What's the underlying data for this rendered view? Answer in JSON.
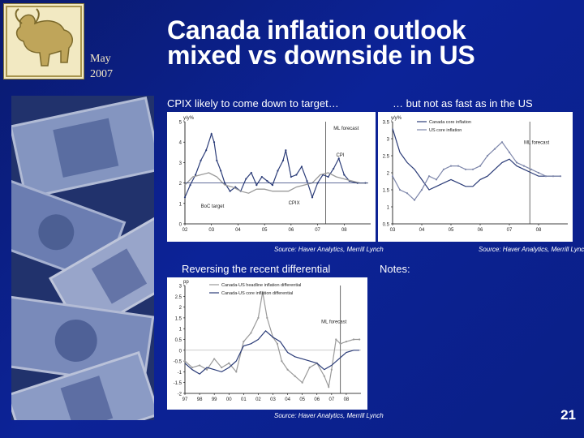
{
  "header": {
    "date_month": "May",
    "date_year": "2007",
    "title_line1": "Canada inflation outlook",
    "title_line2": "mixed vs downside in US"
  },
  "panels": {
    "top_left_heading": "CPIX likely to come down to target…",
    "top_right_heading": "… but not as fast as in the US",
    "bottom_left_heading": "Reversing the recent differential",
    "notes_heading": "Notes:"
  },
  "sources": {
    "top_left": "Source: Haver Analytics, Merrill Lynch",
    "top_right": "Source: Haver Analytics, Merrill Lync",
    "bottom_left": "Source: Haver Analytics, Merrill Lynch"
  },
  "page_number": "21",
  "colors": {
    "background": "#0c2398",
    "accent": "#e6c84a",
    "series_dark": "#2b3c78",
    "series_light": "#7d86aa",
    "series_gray": "#9a9a9a"
  },
  "chart_data": [
    {
      "type": "line",
      "title": "",
      "ylabel": "y/y%",
      "xlabel": "",
      "ylim": [
        0,
        5
      ],
      "yticks": [
        0,
        1,
        2,
        3,
        4,
        5
      ],
      "xlim": [
        2002,
        2009
      ],
      "xticks": [
        "02",
        "03",
        "04",
        "05",
        "06",
        "07",
        "08"
      ],
      "annotations": [
        "ML forecast",
        "CPI",
        "BoC target",
        "CPIX"
      ],
      "series": [
        {
          "name": "CPI",
          "x": [
            2002.0,
            2002.2,
            2002.4,
            2002.6,
            2002.8,
            2003.0,
            2003.1,
            2003.2,
            2003.35,
            2003.5,
            2003.7,
            2003.9,
            2004.1,
            2004.3,
            2004.5,
            2004.7,
            2004.9,
            2005.1,
            2005.3,
            2005.5,
            2005.7,
            2005.8,
            2006.0,
            2006.2,
            2006.4,
            2006.6,
            2006.8,
            2007.0,
            2007.2,
            2007.4,
            2007.6,
            2007.8,
            2008.0,
            2008.2,
            2008.5,
            2008.8
          ],
          "values": [
            1.3,
            1.9,
            2.4,
            3.1,
            3.6,
            4.4,
            4.0,
            3.1,
            2.6,
            2.0,
            1.6,
            1.8,
            1.6,
            2.2,
            2.5,
            1.9,
            2.3,
            2.1,
            1.9,
            2.6,
            3.1,
            3.6,
            2.3,
            2.4,
            2.8,
            2.1,
            1.3,
            2.0,
            2.4,
            2.3,
            2.7,
            3.2,
            2.4,
            2.1,
            2.0,
            2.0
          ]
        },
        {
          "name": "CPIX",
          "x": [
            2002.0,
            2002.3,
            2002.6,
            2002.9,
            2003.2,
            2003.5,
            2003.8,
            2004.1,
            2004.4,
            2004.7,
            2005.0,
            2005.3,
            2005.6,
            2005.9,
            2006.2,
            2006.5,
            2006.8,
            2007.1,
            2007.4,
            2007.7,
            2008.0,
            2008.3,
            2008.6,
            2008.9
          ],
          "values": [
            1.9,
            2.3,
            2.4,
            2.5,
            2.3,
            1.9,
            1.8,
            1.6,
            1.5,
            1.7,
            1.7,
            1.6,
            1.6,
            1.6,
            1.8,
            1.9,
            2.0,
            2.4,
            2.5,
            2.3,
            2.2,
            2.1,
            2.0,
            2.0
          ]
        },
        {
          "name": "BoC target",
          "x": [
            2002.0,
            2008.9
          ],
          "values": [
            2.0,
            2.0
          ]
        }
      ]
    },
    {
      "type": "line",
      "title": "",
      "ylabel": "y/y%",
      "xlabel": "",
      "ylim": [
        0.5,
        3.5
      ],
      "yticks": [
        0.5,
        1,
        1.5,
        2,
        2.5,
        3,
        3.5
      ],
      "xlim": [
        2003,
        2009
      ],
      "xticks": [
        "03",
        "04",
        "05",
        "06",
        "07",
        "08"
      ],
      "annotations": [
        "ML forecast"
      ],
      "series": [
        {
          "name": "Canada core inflation",
          "x": [
            2003.0,
            2003.25,
            2003.5,
            2003.75,
            2004.0,
            2004.25,
            2004.5,
            2004.75,
            2005.0,
            2005.25,
            2005.5,
            2005.75,
            2006.0,
            2006.25,
            2006.5,
            2006.75,
            2007.0,
            2007.25,
            2007.5,
            2007.75,
            2008.0,
            2008.25,
            2008.5,
            2008.75
          ],
          "values": [
            3.3,
            2.6,
            2.3,
            2.1,
            1.8,
            1.5,
            1.6,
            1.7,
            1.8,
            1.7,
            1.6,
            1.6,
            1.8,
            1.9,
            2.1,
            2.3,
            2.4,
            2.2,
            2.1,
            2.0,
            1.9,
            1.9,
            1.9,
            1.9
          ]
        },
        {
          "name": "US core inflation",
          "x": [
            2003.0,
            2003.25,
            2003.5,
            2003.75,
            2004.0,
            2004.25,
            2004.5,
            2004.75,
            2005.0,
            2005.25,
            2005.5,
            2005.75,
            2006.0,
            2006.25,
            2006.5,
            2006.75,
            2007.0,
            2007.25,
            2007.5,
            2007.75,
            2008.0,
            2008.25,
            2008.5,
            2008.75
          ],
          "values": [
            1.9,
            1.5,
            1.4,
            1.2,
            1.5,
            1.9,
            1.8,
            2.1,
            2.2,
            2.2,
            2.1,
            2.1,
            2.2,
            2.5,
            2.7,
            2.9,
            2.6,
            2.3,
            2.2,
            2.1,
            2.0,
            1.9,
            1.9,
            1.9
          ]
        }
      ]
    },
    {
      "type": "line",
      "title": "",
      "ylabel": "pp",
      "xlabel": "",
      "ylim": [
        -2,
        3
      ],
      "yticks": [
        -2,
        -1.5,
        -1,
        -0.5,
        0,
        0.5,
        1,
        1.5,
        2,
        2.5,
        3
      ],
      "xlim": [
        1997,
        2009
      ],
      "xticks": [
        "97",
        "98",
        "99",
        "00",
        "01",
        "02",
        "03",
        "04",
        "05",
        "06",
        "07",
        "08"
      ],
      "annotations": [
        "ML forecast"
      ],
      "series": [
        {
          "name": "Canada-US headline inflation differential",
          "x": [
            1997.0,
            1997.5,
            1998.0,
            1998.5,
            1999.0,
            1999.5,
            2000.0,
            2000.5,
            2001.0,
            2001.5,
            2002.0,
            2002.3,
            2002.6,
            2003.0,
            2003.3,
            2003.6,
            2004.0,
            2004.5,
            2005.0,
            2005.5,
            2006.0,
            2006.5,
            2006.8,
            2007.0,
            2007.3,
            2007.6,
            2008.0,
            2008.5,
            2008.9
          ],
          "values": [
            -0.5,
            -0.8,
            -0.7,
            -0.9,
            -0.4,
            -0.8,
            -0.6,
            -1.0,
            0.4,
            0.8,
            1.5,
            2.7,
            1.5,
            0.6,
            0.3,
            -0.5,
            -0.9,
            -1.2,
            -1.5,
            -0.8,
            -0.6,
            -1.2,
            -1.7,
            -0.9,
            0.5,
            0.3,
            0.4,
            0.5,
            0.5
          ]
        },
        {
          "name": "Canada-US core inflation differential",
          "x": [
            1997.0,
            1997.5,
            1998.0,
            1998.5,
            1999.0,
            1999.5,
            2000.0,
            2000.5,
            2001.0,
            2001.5,
            2002.0,
            2002.5,
            2003.0,
            2003.5,
            2004.0,
            2004.5,
            2005.0,
            2005.5,
            2006.0,
            2006.5,
            2007.0,
            2007.5,
            2008.0,
            2008.5,
            2008.9
          ],
          "values": [
            -0.6,
            -0.9,
            -1.1,
            -0.8,
            -0.9,
            -1.0,
            -0.8,
            -0.5,
            0.2,
            0.3,
            0.5,
            0.9,
            0.6,
            0.4,
            -0.1,
            -0.3,
            -0.4,
            -0.5,
            -0.6,
            -0.9,
            -0.7,
            -0.4,
            -0.1,
            0.0,
            0.0
          ]
        }
      ]
    }
  ]
}
